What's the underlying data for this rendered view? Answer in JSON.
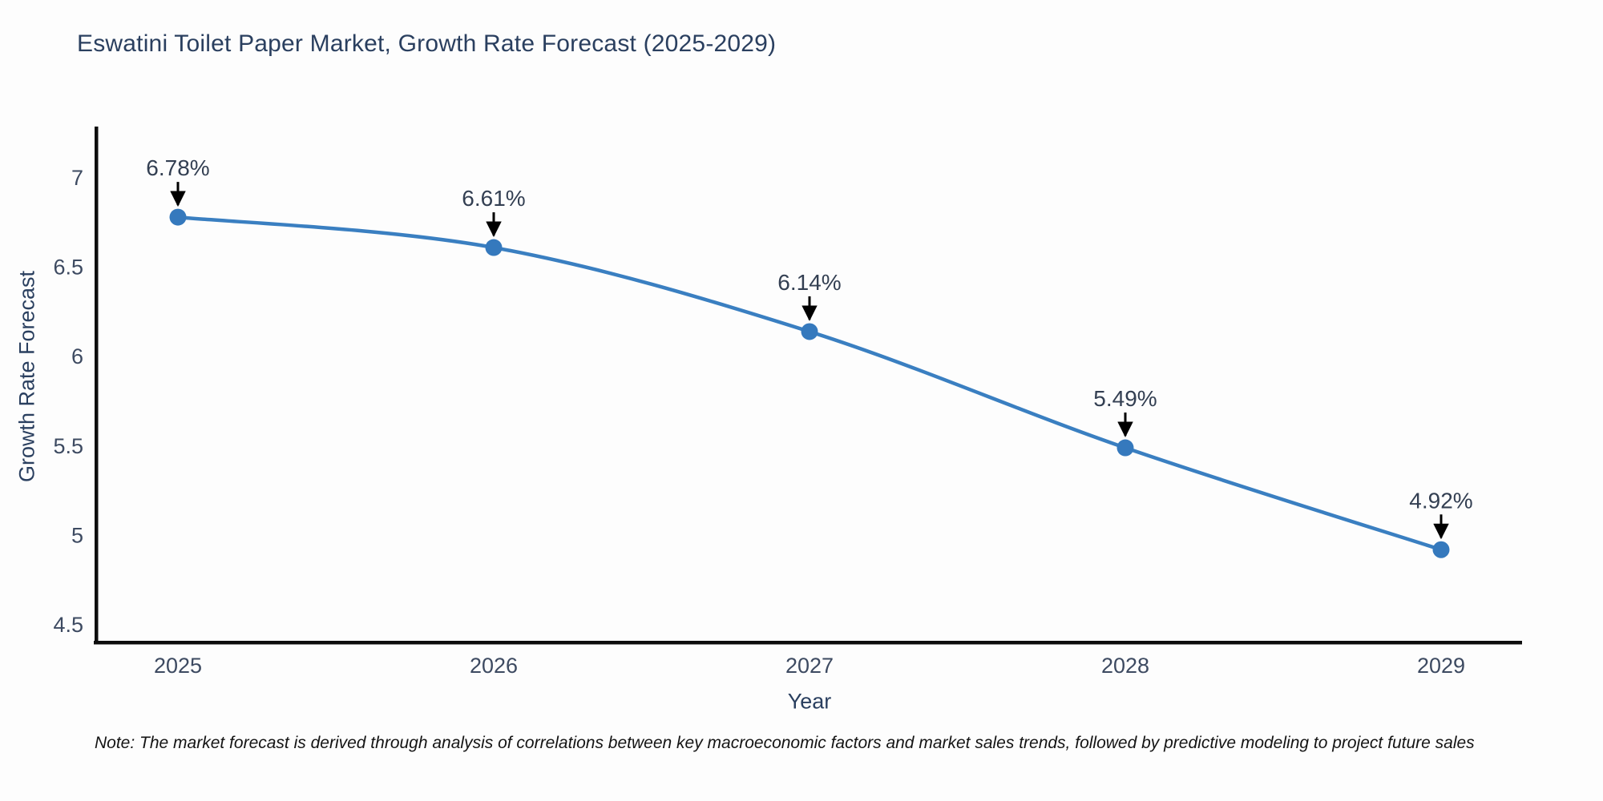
{
  "title": "Eswatini Toilet Paper Market, Growth Rate Forecast (2025-2029)",
  "note": "Note: The market forecast is derived through analysis of correlations between key macroeconomic factors and market sales trends, followed by predictive modeling to project future sales",
  "chart_data": {
    "type": "line",
    "x": [
      "2025",
      "2026",
      "2027",
      "2028",
      "2029"
    ],
    "series": [
      {
        "name": "Growth Rate Forecast",
        "values": [
          6.78,
          6.61,
          6.14,
          5.49,
          4.92
        ]
      }
    ],
    "point_labels": [
      "6.78%",
      "6.61%",
      "6.14%",
      "5.49%",
      "4.92%"
    ],
    "title": "Eswatini Toilet Paper Market, Growth Rate Forecast (2025-2029)",
    "xlabel": "Year",
    "ylabel": "Growth Rate Forecast",
    "ylim": [
      4.5,
      7.0
    ],
    "yticks": [
      7,
      6.5,
      6,
      5.5,
      5,
      4.5
    ],
    "grid": false,
    "legend": "none",
    "annotations_have_arrows": true
  },
  "colors": {
    "line": "#3a7fc1",
    "marker": "#3579bd",
    "axis_line": "#0d0d0d",
    "title_text": "#2a3f5f",
    "axis_title_text": "#2a3f5f",
    "tick_text": "#3d4a61",
    "annotation_text": "#333f52",
    "arrow": "#000000",
    "background": "#fdfdfd"
  }
}
